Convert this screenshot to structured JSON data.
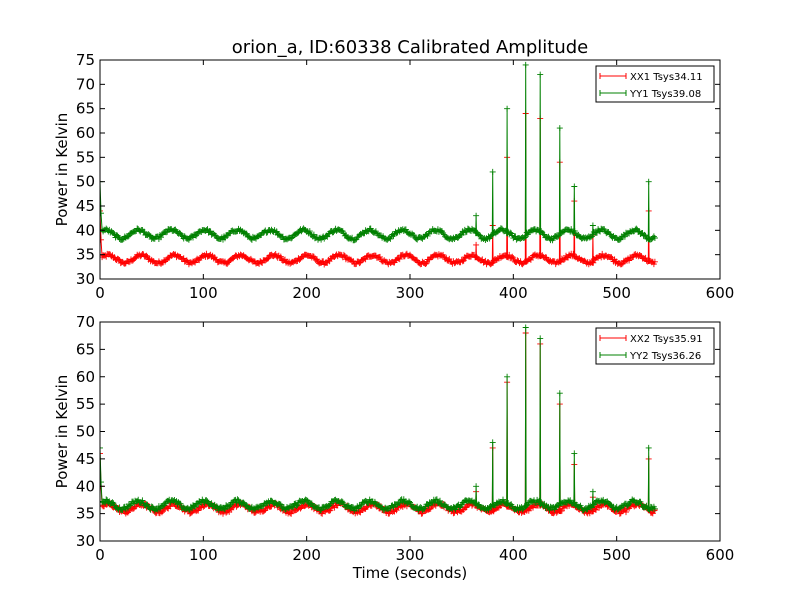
{
  "figure": {
    "title": "orion_a, ID:60338 Calibrated Amplitude"
  },
  "chart_data": [
    {
      "type": "line",
      "title": "orion_a, ID:60338 Calibrated Amplitude",
      "xlabel": "",
      "ylabel": "Power in Kelvin",
      "xlim": [
        0,
        600
      ],
      "ylim": [
        30,
        75
      ],
      "xticks": [
        0,
        100,
        200,
        300,
        400,
        500,
        600
      ],
      "yticks": [
        30,
        35,
        40,
        45,
        50,
        55,
        60,
        65,
        70,
        75
      ],
      "grid": false,
      "legend": "top-right",
      "marker": "+",
      "series": [
        {
          "name": "XX1 Tsys34.11",
          "color": "#ff0000",
          "x_range": [
            0,
            537
          ],
          "baseline": 34.1,
          "oscillation_amplitude": 0.8,
          "oscillation_period": 32,
          "start_value": 44,
          "peaks": [
            {
              "x": 0,
              "y": 44
            },
            {
              "x": 364,
              "y": 37
            },
            {
              "x": 380,
              "y": 41
            },
            {
              "x": 394,
              "y": 55
            },
            {
              "x": 412,
              "y": 64
            },
            {
              "x": 426,
              "y": 63
            },
            {
              "x": 445,
              "y": 54
            },
            {
              "x": 459,
              "y": 46
            },
            {
              "x": 477,
              "y": 39
            },
            {
              "x": 531,
              "y": 44
            }
          ]
        },
        {
          "name": "YY1 Tsys39.08",
          "color": "#008000",
          "x_range": [
            0,
            537
          ],
          "baseline": 39.2,
          "oscillation_amplitude": 0.9,
          "oscillation_period": 32,
          "start_value": 50,
          "peaks": [
            {
              "x": 0,
              "y": 50
            },
            {
              "x": 364,
              "y": 43
            },
            {
              "x": 380,
              "y": 52
            },
            {
              "x": 394,
              "y": 65
            },
            {
              "x": 412,
              "y": 74
            },
            {
              "x": 426,
              "y": 72
            },
            {
              "x": 445,
              "y": 61
            },
            {
              "x": 459,
              "y": 49
            },
            {
              "x": 477,
              "y": 41
            },
            {
              "x": 531,
              "y": 50
            }
          ]
        }
      ]
    },
    {
      "type": "line",
      "title": "",
      "xlabel": "Time (seconds)",
      "ylabel": "Power in Kelvin",
      "xlim": [
        0,
        600
      ],
      "ylim": [
        30,
        70
      ],
      "xticks": [
        0,
        100,
        200,
        300,
        400,
        500,
        600
      ],
      "yticks": [
        30,
        35,
        40,
        45,
        50,
        55,
        60,
        65,
        70
      ],
      "grid": false,
      "legend": "top-right",
      "marker": "+",
      "series": [
        {
          "name": "XX2 Tsys35.91",
          "color": "#ff0000",
          "x_range": [
            0,
            537
          ],
          "baseline": 36.0,
          "oscillation_amplitude": 0.7,
          "oscillation_period": 32,
          "start_value": 46,
          "peaks": [
            {
              "x": 0,
              "y": 46
            },
            {
              "x": 364,
              "y": 39
            },
            {
              "x": 380,
              "y": 47
            },
            {
              "x": 394,
              "y": 59
            },
            {
              "x": 412,
              "y": 68
            },
            {
              "x": 426,
              "y": 66
            },
            {
              "x": 445,
              "y": 55
            },
            {
              "x": 459,
              "y": 44
            },
            {
              "x": 477,
              "y": 38
            },
            {
              "x": 531,
              "y": 45
            }
          ]
        },
        {
          "name": "YY2 Tsys36.26",
          "color": "#008000",
          "x_range": [
            0,
            537
          ],
          "baseline": 36.6,
          "oscillation_amplitude": 0.7,
          "oscillation_period": 32,
          "start_value": 47,
          "peaks": [
            {
              "x": 0,
              "y": 47
            },
            {
              "x": 364,
              "y": 40
            },
            {
              "x": 380,
              "y": 48
            },
            {
              "x": 394,
              "y": 60
            },
            {
              "x": 412,
              "y": 69
            },
            {
              "x": 426,
              "y": 67
            },
            {
              "x": 445,
              "y": 57
            },
            {
              "x": 459,
              "y": 46
            },
            {
              "x": 477,
              "y": 39
            },
            {
              "x": 531,
              "y": 47
            }
          ]
        }
      ]
    }
  ]
}
